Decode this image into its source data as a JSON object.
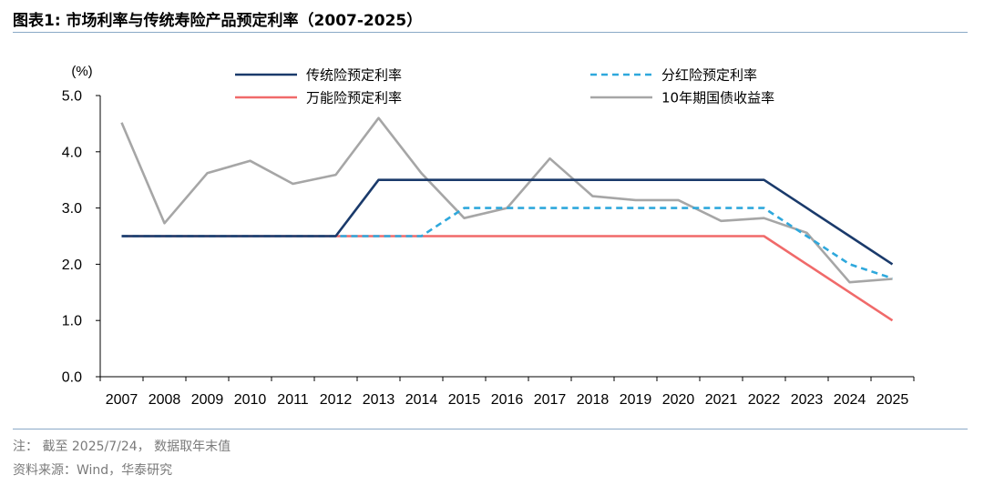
{
  "header": {
    "title": "图表1:  市场利率与传统寿险产品预定利率（2007-2025）"
  },
  "footer": {
    "note": "注：  截至 2025/7/24，  数据取年末值",
    "source": "资料来源：Wind，华泰研究"
  },
  "chart_data": {
    "type": "line",
    "title": "市场利率与传统寿险产品预定利率（2007-2025）",
    "ylabel": "(%)",
    "xlabel": "",
    "ylim": [
      0,
      5
    ],
    "yticks": [
      "0.0",
      "1.0",
      "2.0",
      "3.0",
      "4.0",
      "5.0"
    ],
    "grid": false,
    "legend_position": "top",
    "categories": [
      "2007",
      "2008",
      "2009",
      "2010",
      "2011",
      "2012",
      "2013",
      "2014",
      "2015",
      "2016",
      "2017",
      "2018",
      "2019",
      "2020",
      "2021",
      "2022",
      "2023",
      "2024",
      "2025"
    ],
    "series": [
      {
        "name": "传统险预定利率",
        "color": "#1a3a6b",
        "style": "solid",
        "values": [
          2.5,
          2.5,
          2.5,
          2.5,
          2.5,
          2.5,
          3.5,
          3.5,
          3.5,
          3.5,
          3.5,
          3.5,
          3.5,
          3.5,
          3.5,
          3.5,
          3.0,
          2.5,
          2.0
        ]
      },
      {
        "name": "分红险预定利率",
        "color": "#2ea8dc",
        "style": "dashed",
        "values": [
          2.5,
          2.5,
          2.5,
          2.5,
          2.5,
          2.5,
          2.5,
          2.5,
          3.0,
          3.0,
          3.0,
          3.0,
          3.0,
          3.0,
          3.0,
          3.0,
          2.5,
          2.0,
          1.75
        ]
      },
      {
        "name": "万能险预定利率",
        "color": "#f06a6a",
        "style": "solid",
        "values": [
          2.5,
          2.5,
          2.5,
          2.5,
          2.5,
          2.5,
          2.5,
          2.5,
          2.5,
          2.5,
          2.5,
          2.5,
          2.5,
          2.5,
          2.5,
          2.5,
          2.0,
          1.5,
          1.0
        ]
      },
      {
        "name": "10年期国债收益率",
        "color": "#a6a6a6",
        "style": "solid",
        "values": [
          4.52,
          2.73,
          3.62,
          3.84,
          3.43,
          3.59,
          4.6,
          3.62,
          2.82,
          3.0,
          3.88,
          3.21,
          3.14,
          3.14,
          2.77,
          2.82,
          2.56,
          1.68,
          1.74
        ]
      }
    ]
  }
}
